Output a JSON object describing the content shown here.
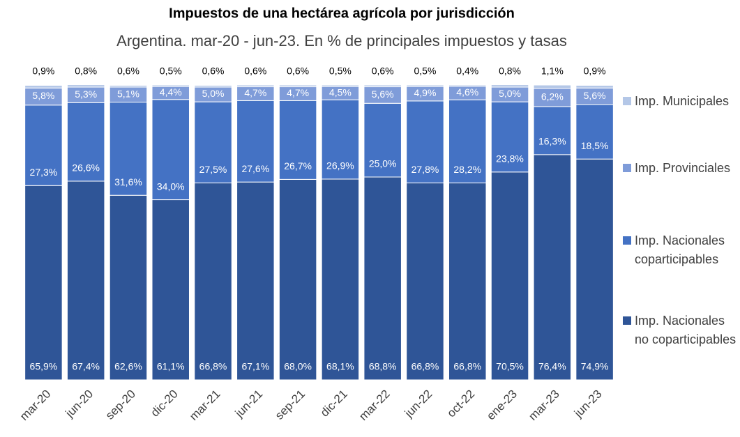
{
  "chart_data": {
    "type": "stacked-bar-100",
    "title": "Impuestos de una hectárea agrícola por jurisdicción",
    "subtitle": "Argentina. mar-20 - jun-23. En % de principales impuestos y tasas",
    "categories": [
      "mar-20",
      "jun-20",
      "sep-20",
      "dic-20",
      "mar-21",
      "jun-21",
      "sep-21",
      "dic-21",
      "mar-22",
      "jun-22",
      "oct-22",
      "ene-23",
      "mar-23",
      "jun-23"
    ],
    "ylim": [
      0,
      100
    ],
    "legend": "right",
    "series": [
      {
        "name": "Imp. Nacionales no coparticipables",
        "color": "#2f5597",
        "values": [
          65.9,
          67.4,
          62.6,
          61.1,
          66.8,
          67.1,
          68.0,
          68.1,
          68.8,
          66.8,
          66.8,
          70.5,
          76.4,
          74.9
        ],
        "value_labels": [
          "65,9%",
          "67,4%",
          "62,6%",
          "61,1%",
          "66,8%",
          "67,1%",
          "68,0%",
          "68,1%",
          "68,8%",
          "66,8%",
          "66,8%",
          "70,5%",
          "76,4%",
          "74,9%"
        ]
      },
      {
        "name": "Imp. Nacionales coparticipables",
        "color": "#4472c4",
        "values": [
          27.3,
          26.6,
          31.6,
          34.0,
          27.5,
          27.6,
          26.7,
          26.9,
          25.0,
          27.8,
          28.2,
          23.8,
          16.3,
          18.5
        ],
        "value_labels": [
          "27,3%",
          "26,6%",
          "31,6%",
          "34,0%",
          "27,5%",
          "27,6%",
          "26,7%",
          "26,9%",
          "25,0%",
          "27,8%",
          "28,2%",
          "23,8%",
          "16,3%",
          "18,5%"
        ]
      },
      {
        "name": "Imp. Provinciales",
        "color": "#7f9cd9",
        "values": [
          5.8,
          5.3,
          5.1,
          4.4,
          5.0,
          4.7,
          4.7,
          4.5,
          5.6,
          4.9,
          4.6,
          5.0,
          6.2,
          5.6
        ],
        "value_labels": [
          "5,8%",
          "5,3%",
          "5,1%",
          "4,4%",
          "5,0%",
          "4,7%",
          "4,7%",
          "4,5%",
          "5,6%",
          "4,9%",
          "4,6%",
          "5,0%",
          "6,2%",
          "5,6%"
        ]
      },
      {
        "name": "Imp. Municipales",
        "color": "#b4c7e7",
        "values": [
          0.9,
          0.8,
          0.6,
          0.5,
          0.6,
          0.6,
          0.6,
          0.5,
          0.6,
          0.5,
          0.4,
          0.8,
          1.1,
          0.9
        ],
        "value_labels": [
          "0,9%",
          "0,8%",
          "0,6%",
          "0,5%",
          "0,6%",
          "0,6%",
          "0,6%",
          "0,5%",
          "0,6%",
          "0,5%",
          "0,4%",
          "0,8%",
          "1,1%",
          "0,9%"
        ]
      }
    ]
  }
}
